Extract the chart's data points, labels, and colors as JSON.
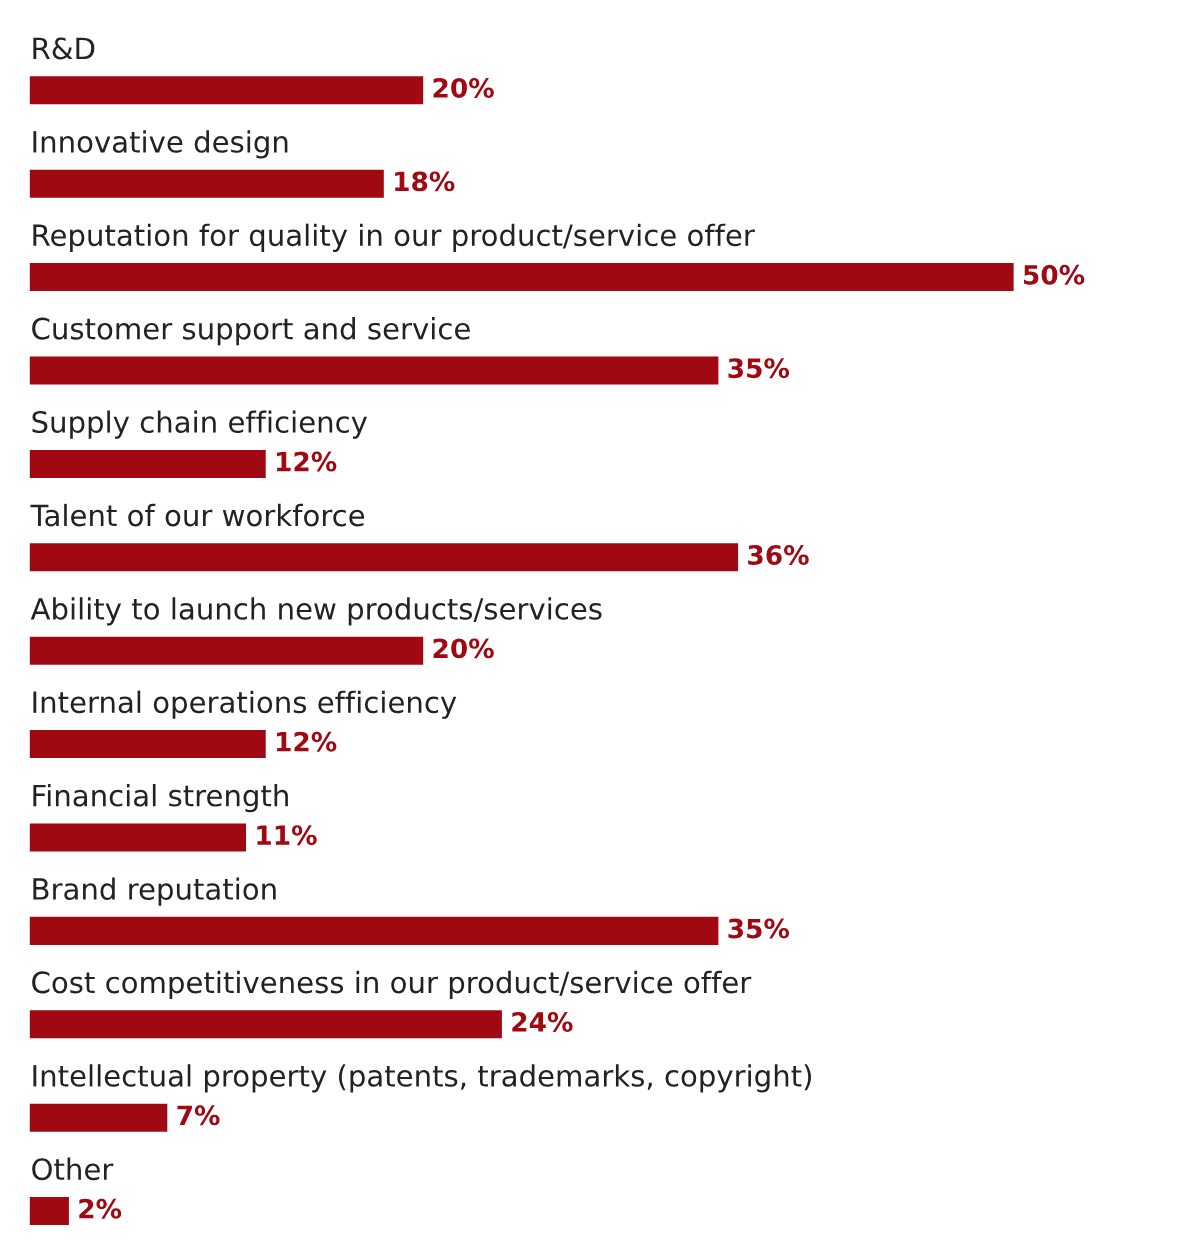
{
  "chart_data": {
    "type": "bar",
    "orientation": "horizontal",
    "categories": [
      "R&D",
      "Innovative design",
      "Reputation for quality in our product/service offer",
      "Customer support and service",
      "Supply chain efficiency",
      "Talent of our workforce",
      "Ability to launch new products/services",
      "Internal operations efficiency",
      "Financial strength",
      "Brand reputation",
      "Cost competitiveness in our product/service offer",
      "Intellectual property (patents, trademarks, copyright)",
      "Other"
    ],
    "values": [
      20,
      18,
      50,
      35,
      12,
      36,
      20,
      12,
      11,
      35,
      24,
      7,
      2
    ],
    "value_labels": [
      "20%",
      "18%",
      "50%",
      "35%",
      "12%",
      "36%",
      "20%",
      "12%",
      "11%",
      "35%",
      "24%",
      "7%",
      "2%"
    ],
    "color": "#a00812"
  }
}
